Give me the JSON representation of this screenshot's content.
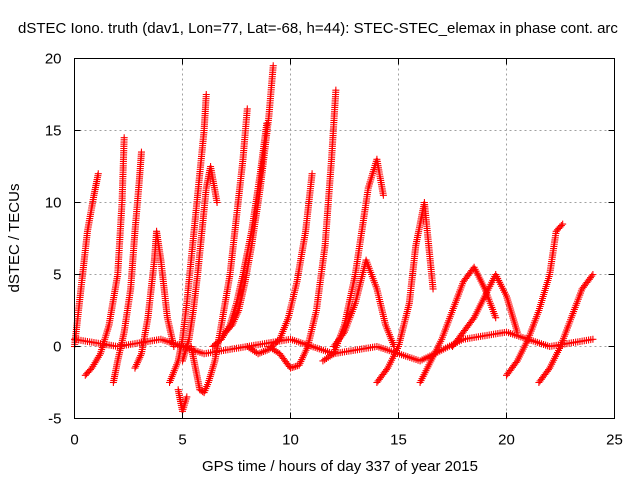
{
  "chart_data": {
    "type": "scatter",
    "title": "dSTEC Iono. truth (dav1, Lon=77, Lat=-68, h=44): STEC-STEC_elemax in phase cont. arc",
    "xlabel": "GPS time / hours of day 337 of year 2015",
    "ylabel": "dSTEC  / TECUs",
    "xlim": [
      0,
      25
    ],
    "ylim": [
      -5,
      20
    ],
    "xticks": [
      0,
      5,
      10,
      15,
      20,
      25
    ],
    "yticks": [
      -5,
      0,
      5,
      10,
      15,
      20
    ],
    "x_tick_labels": [
      "0",
      "5",
      "10",
      "15",
      "20",
      "25"
    ],
    "y_tick_labels": [
      "-5",
      "0",
      "5",
      "10",
      "15",
      "20"
    ],
    "grid": true,
    "marker": "plus",
    "color": "#ff0000",
    "series": [
      {
        "x": [
          0.0,
          0.3,
          0.6,
          0.9,
          1.1
        ],
        "y": [
          0.0,
          4.0,
          8.0,
          10.5,
          12.0
        ]
      },
      {
        "x": [
          0.5,
          0.8,
          1.2,
          1.6,
          2.0,
          2.2,
          2.3
        ],
        "y": [
          -2.0,
          -1.5,
          -0.5,
          1.5,
          5.0,
          10.0,
          14.5
        ]
      },
      {
        "x": [
          1.8,
          2.0,
          2.3,
          2.6,
          2.8,
          3.0,
          3.1
        ],
        "y": [
          -2.5,
          -1.0,
          1.0,
          4.0,
          8.0,
          11.5,
          13.5
        ]
      },
      {
        "x": [
          2.8,
          3.1,
          3.4,
          3.7,
          3.8,
          4.0,
          4.3,
          4.6
        ],
        "y": [
          -1.5,
          -0.5,
          2.0,
          6.0,
          8.0,
          6.0,
          2.0,
          0.0
        ]
      },
      {
        "x": [
          4.4,
          4.8,
          5.0,
          5.2,
          5.4,
          5.6,
          5.8,
          6.0,
          6.1
        ],
        "y": [
          -2.5,
          -1.0,
          0.5,
          3.0,
          6.0,
          9.0,
          12.0,
          15.0,
          17.5
        ]
      },
      {
        "x": [
          5.0,
          5.3,
          5.5,
          5.7,
          5.9,
          6.1,
          6.3,
          6.6
        ],
        "y": [
          -1.0,
          0.5,
          2.5,
          5.0,
          8.0,
          11.0,
          12.5,
          10.0
        ]
      },
      {
        "x": [
          5.4,
          5.6,
          5.8,
          6.0,
          6.2,
          6.5,
          6.8,
          7.2,
          7.5,
          7.8,
          8.0
        ],
        "y": [
          0.0,
          -1.5,
          -3.0,
          -3.2,
          -2.5,
          -1.0,
          1.5,
          5.0,
          9.0,
          13.0,
          16.5
        ]
      },
      {
        "x": [
          6.4,
          6.8,
          7.2,
          7.5,
          7.8,
          8.2,
          8.6,
          8.9
        ],
        "y": [
          0.0,
          0.5,
          1.5,
          3.0,
          5.0,
          8.0,
          12.0,
          15.5
        ]
      },
      {
        "x": [
          7.0,
          7.3,
          7.6,
          7.9,
          8.2,
          8.6,
          9.0,
          9.2
        ],
        "y": [
          1.0,
          1.5,
          2.5,
          4.5,
          7.0,
          11.0,
          16.0,
          19.5
        ]
      },
      {
        "x": [
          8.0,
          8.5,
          9.0,
          9.5,
          9.9,
          10.3,
          10.7,
          11.0
        ],
        "y": [
          0.0,
          -0.5,
          -0.2,
          0.5,
          2.0,
          4.5,
          8.0,
          12.0
        ]
      },
      {
        "x": [
          9.0,
          9.5,
          10.0,
          10.4,
          10.8,
          11.2,
          11.6,
          11.9,
          12.1
        ],
        "y": [
          0.0,
          -0.5,
          -1.5,
          -1.3,
          0.0,
          2.5,
          7.0,
          13.0,
          17.8
        ]
      },
      {
        "x": [
          11.5,
          12.0,
          12.5,
          13.0,
          13.3,
          13.6,
          14.0,
          14.3
        ],
        "y": [
          -1.0,
          -0.5,
          1.5,
          5.0,
          8.0,
          11.0,
          13.0,
          10.5
        ]
      },
      {
        "x": [
          12.0,
          12.5,
          13.0,
          13.5,
          14.0,
          14.4,
          14.8
        ],
        "y": [
          0.0,
          1.0,
          3.0,
          6.0,
          4.0,
          1.5,
          0.0
        ]
      },
      {
        "x": [
          14.0,
          14.5,
          15.0,
          15.5,
          15.8,
          16.2,
          16.6
        ],
        "y": [
          -2.5,
          -1.5,
          0.0,
          3.0,
          7.0,
          10.0,
          4.0
        ]
      },
      {
        "x": [
          16.0,
          16.5,
          17.0,
          17.5,
          18.0,
          18.5,
          19.0,
          19.5
        ],
        "y": [
          -2.5,
          -1.0,
          0.5,
          2.5,
          4.5,
          5.5,
          4.0,
          2.0
        ]
      },
      {
        "x": [
          17.5,
          18.0,
          18.5,
          19.0,
          19.5,
          20.0,
          20.5
        ],
        "y": [
          0.0,
          1.0,
          2.0,
          3.5,
          5.0,
          3.5,
          1.0
        ]
      },
      {
        "x": [
          20.0,
          20.5,
          21.0,
          21.5,
          22.0,
          22.3,
          22.6
        ],
        "y": [
          -2.0,
          -1.0,
          0.5,
          2.5,
          5.0,
          8.0,
          8.5
        ]
      },
      {
        "x": [
          21.5,
          22.0,
          22.5,
          23.0,
          23.5,
          24.0
        ],
        "y": [
          -2.5,
          -1.5,
          0.0,
          2.0,
          4.0,
          5.0
        ]
      },
      {
        "x": [
          0.0,
          2.0,
          4.0,
          6.0,
          8.0,
          10.0,
          12.0,
          14.0,
          16.0,
          18.0,
          20.0,
          22.0,
          24.0
        ],
        "y": [
          0.5,
          0.0,
          0.5,
          -0.5,
          0.0,
          0.5,
          -0.5,
          0.0,
          -1.0,
          0.5,
          1.0,
          0.0,
          0.5
        ]
      },
      {
        "x": [
          4.8,
          5.0,
          5.2
        ],
        "y": [
          -3.0,
          -4.5,
          -3.5
        ]
      }
    ]
  }
}
